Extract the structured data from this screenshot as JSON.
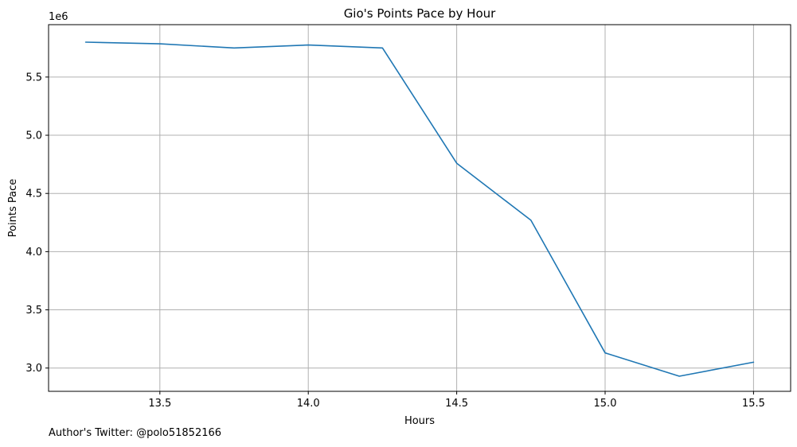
{
  "chart_data": {
    "type": "line",
    "title": "Gio's Points Pace by Hour",
    "xlabel": "Hours",
    "ylabel": "Points Pace",
    "y_offset_label": "1e6",
    "xlim": [
      13.125,
      15.625
    ],
    "ylim": [
      2.8,
      5.95
    ],
    "xticks": [
      13.5,
      14.0,
      14.5,
      15.0,
      15.5
    ],
    "xtick_labels": [
      "13.5",
      "14.0",
      "14.5",
      "15.0",
      "15.5"
    ],
    "yticks": [
      3.0,
      3.5,
      4.0,
      4.5,
      5.0,
      5.5
    ],
    "ytick_labels": [
      "3.0",
      "3.5",
      "4.0",
      "4.5",
      "5.0",
      "5.5"
    ],
    "grid": true,
    "series": [
      {
        "color": "#1f77b4",
        "x": [
          13.25,
          13.5,
          13.75,
          14.0,
          14.25,
          14.5,
          14.75,
          15.0,
          15.25,
          15.5
        ],
        "y": [
          5.8,
          5.785,
          5.75,
          5.775,
          5.75,
          4.76,
          4.27,
          3.13,
          2.93,
          3.05
        ]
      }
    ]
  },
  "footer": {
    "note": "Author's Twitter: @polo51852166"
  }
}
